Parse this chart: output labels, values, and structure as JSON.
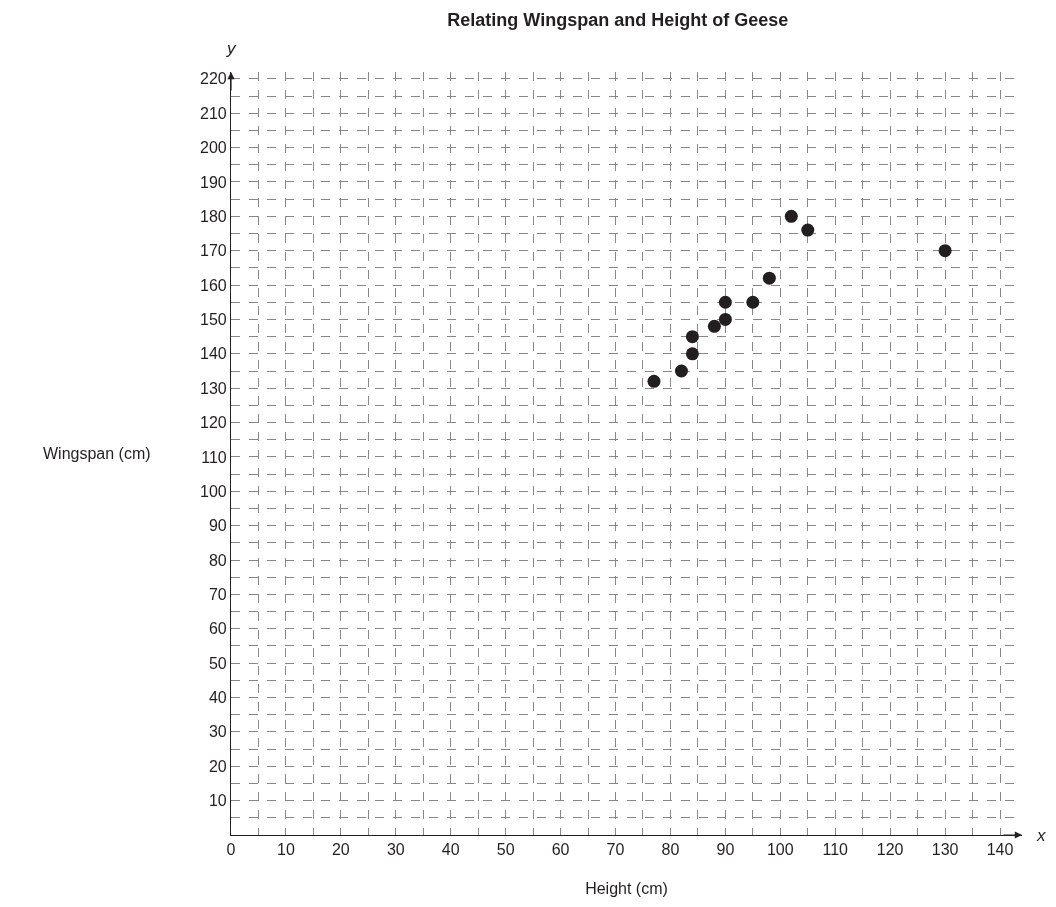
{
  "chart_data": {
    "type": "scatter",
    "title": "Relating Wingspan and Height of Geese",
    "xlabel": "Height (cm)",
    "ylabel": "Wingspan (cm)",
    "annotations": [
      "x",
      "y"
    ],
    "x": [
      77,
      82,
      84,
      84,
      88,
      90,
      90,
      95,
      98,
      102,
      105,
      130
    ],
    "series": [
      {
        "color": "#231f20",
        "values": [
          132,
          135,
          140,
          145,
          148,
          150,
          155,
          155,
          162,
          180,
          176,
          170
        ]
      }
    ],
    "xlim": [
      0,
      144
    ],
    "ylim": [
      0,
      222
    ],
    "xticks": [
      0,
      10,
      20,
      30,
      40,
      50,
      60,
      70,
      80,
      90,
      100,
      110,
      120,
      130,
      140
    ],
    "yticks": [
      10,
      20,
      30,
      40,
      50,
      60,
      70,
      80,
      90,
      100,
      110,
      120,
      130,
      140,
      150,
      160,
      170,
      180,
      190,
      200,
      210,
      220
    ],
    "grid": true,
    "marker": "circle"
  }
}
